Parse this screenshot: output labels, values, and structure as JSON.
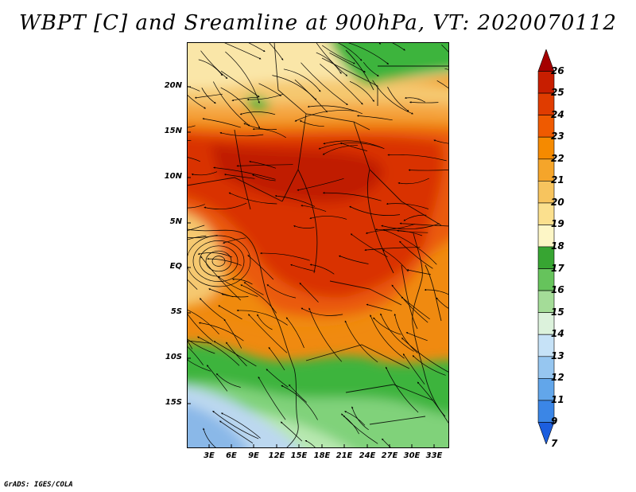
{
  "title": "WBPT [C] and Sreamline at 900hPa, VT: 2020070112",
  "footer": "GrADS: IGES/COLA",
  "map": {
    "variable": "WBPT",
    "level": "900hPa",
    "lat_labels": [
      "20N",
      "15N",
      "10N",
      "5N",
      "EQ",
      "5S",
      "10S",
      "15S"
    ],
    "lon_labels": [
      "3E",
      "6E",
      "9E",
      "12E",
      "15E",
      "18E",
      "21E",
      "24E",
      "27E",
      "30E",
      "33E"
    ],
    "colors": {
      "c25": "#c01a00",
      "c24": "#d93200",
      "c23": "#ea5a10",
      "c22": "#f08a10",
      "c21": "#f5a540",
      "c20": "#f5c870",
      "c19": "#fae6a8",
      "c17": "#3cb43c",
      "c16": "#80d27a",
      "c15": "#b8e8b0",
      "c14": "#bcd8f0",
      "c13": "#8ab8e8"
    }
  },
  "colorbar": {
    "labels": [
      "26",
      "25",
      "24",
      "23",
      "22",
      "21",
      "20",
      "19",
      "18",
      "17",
      "16",
      "15",
      "14",
      "13",
      "12",
      "11",
      "9",
      "7"
    ],
    "colors": [
      "#a50000",
      "#c81e00",
      "#e03c00",
      "#ef5a00",
      "#f58a00",
      "#f5a52a",
      "#f7c45e",
      "#fbe08e",
      "#fdf6c6",
      "#37a532",
      "#66c35c",
      "#a4dc98",
      "#dcf2dc",
      "#c6e2f7",
      "#96c6f0",
      "#62a6ea",
      "#3b86e6",
      "#1c5ede"
    ]
  }
}
